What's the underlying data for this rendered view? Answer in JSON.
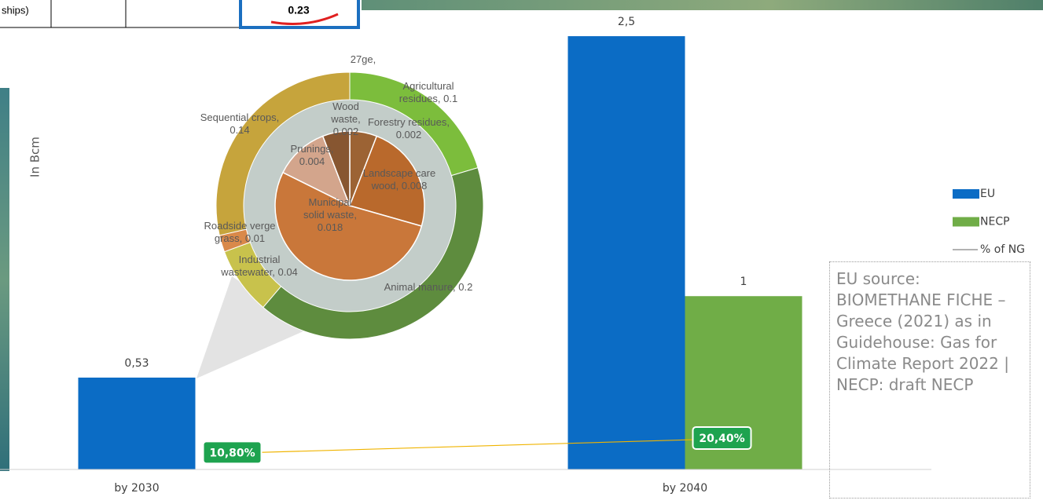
{
  "fragments": {
    "row_label": "ships)",
    "cell_value": "0.23",
    "cropped_label": "27ge,"
  },
  "chart_data": [
    {
      "type": "bar",
      "y_label": "In Bcm",
      "categories": [
        "by 2030",
        "by 2040"
      ],
      "series": [
        {
          "name": "EU",
          "color": "#0b6cc5",
          "values": [
            0.53,
            2.5
          ],
          "value_labels": [
            "0,53",
            "2,5"
          ]
        },
        {
          "name": "NECP",
          "color": "#70ad47",
          "values": [
            null,
            1
          ]
        },
        {
          "name": "% of NG",
          "type": "line",
          "axis": "y2",
          "color": "#f0b400",
          "values": [
            10.8,
            20.4
          ],
          "value_labels": [
            "10,80%",
            "20,40%"
          ]
        }
      ],
      "ylim": [
        0,
        2.6
      ],
      "y2lim": [
        0,
        300
      ],
      "legend": "right"
    },
    {
      "type": "donut",
      "categories": [
        "Agricultural residues, 0.1",
        "Animal manure, 0.2",
        "Industrial wastewater, 0.04",
        "Roadside verge grass, 0.01",
        "Sequential crops, 0.14"
      ],
      "values": [
        0.1,
        0.2,
        0.04,
        0.01,
        0.14
      ],
      "colors": [
        "#7cbd3c",
        "#5e8c3e",
        "#c8c24c",
        "#d9894a",
        "#c6a43c"
      ]
    },
    {
      "type": "pie",
      "categories": [
        "Forestry residues, 0.002",
        "Landscape care wood, 0.008",
        "Municipal solid waste, 0.018",
        "Prunings, 0.004",
        "Wood waste, 0.002"
      ],
      "values": [
        0.002,
        0.008,
        0.018,
        0.004,
        0.002
      ],
      "colors": [
        "#9c6334",
        "#b9692c",
        "#c9773a",
        "#d3a58c",
        "#875631"
      ]
    }
  ],
  "note": "EU source: BIOMETHANE FICHE – Greece (2021) as in Guidehouse: Gas for Climate Report 2022 | NECP: draft NECP"
}
